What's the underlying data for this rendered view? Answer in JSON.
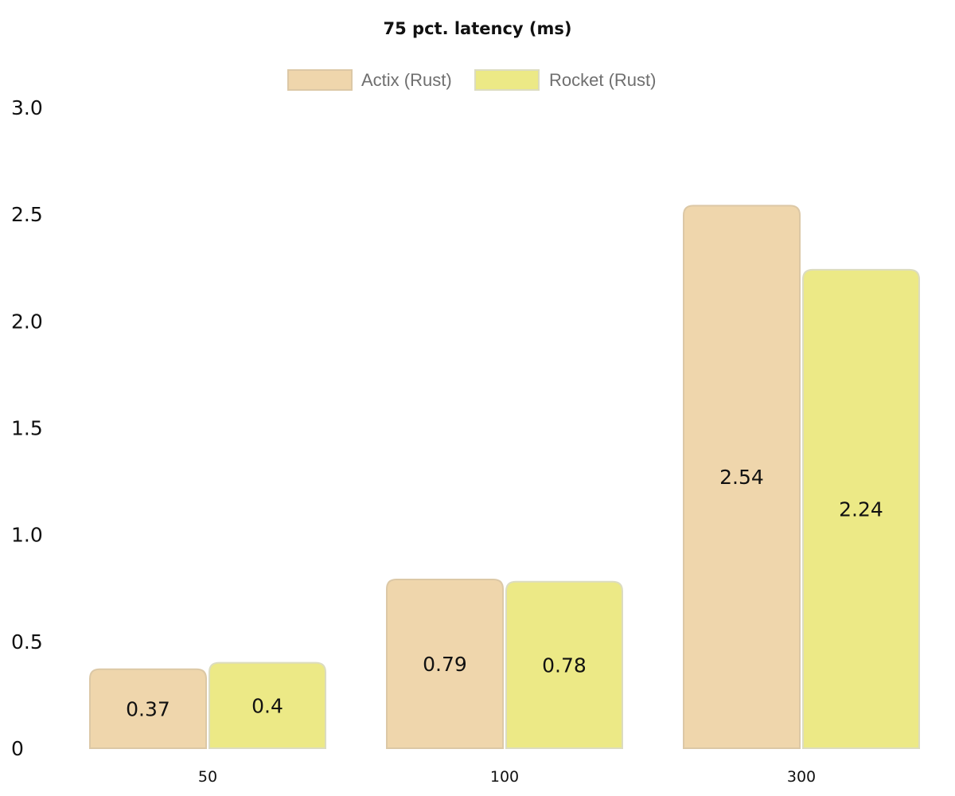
{
  "chart_data": {
    "type": "bar",
    "title": "75 pct. latency (ms)",
    "xlabel": "",
    "ylabel": "",
    "categories": [
      "50",
      "100",
      "300"
    ],
    "series": [
      {
        "name": "Actix (Rust)",
        "values": [
          0.37,
          0.79,
          2.54
        ],
        "color": "#efd6ac",
        "border": "#dcc8a6"
      },
      {
        "name": "Rocket (Rust)",
        "values": [
          0.4,
          0.78,
          2.24
        ],
        "color": "#ece986",
        "border": "#dcdcc0"
      }
    ],
    "ylim": [
      0,
      3.0
    ],
    "yticks": [
      "0",
      "0.5",
      "1.0",
      "1.5",
      "2.0",
      "2.5",
      "3.0"
    ],
    "ytick_values": [
      0,
      0.5,
      1.0,
      1.5,
      2.0,
      2.5,
      3.0
    ],
    "legend_position": "top-center",
    "grid": false
  }
}
